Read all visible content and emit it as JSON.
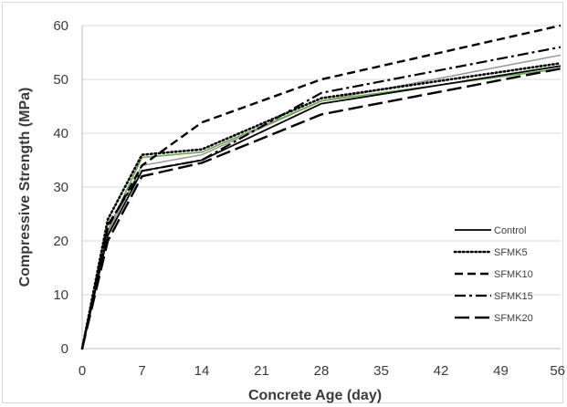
{
  "chart_data": {
    "type": "line",
    "title": "",
    "xlabel": "Concrete Age (day)",
    "ylabel": "Compressive Strength (MPa)",
    "xlim": [
      0,
      56
    ],
    "ylim": [
      0,
      60
    ],
    "xticks": [
      0,
      7,
      14,
      21,
      28,
      35,
      42,
      49,
      56
    ],
    "yticks": [
      0,
      10,
      20,
      30,
      40,
      50,
      60
    ],
    "x_tick_labels": [
      "0",
      "7",
      "14",
      "21",
      "28",
      "35",
      "42",
      "49",
      "56"
    ],
    "y_tick_labels": [
      "0",
      "10",
      "20",
      "30",
      "40",
      "50",
      "60"
    ],
    "grid": "horizontal",
    "legend_position": "right",
    "series": [
      {
        "name": "Control",
        "style": "solid",
        "color": "#000000",
        "x": [
          0,
          3,
          7,
          14,
          28,
          56
        ],
        "y": [
          0,
          21,
          33,
          35,
          45.5,
          52.5
        ]
      },
      {
        "name": "SFMK5",
        "style": "dotted",
        "color": "#000000",
        "x": [
          0,
          3,
          7,
          14,
          28,
          56
        ],
        "y": [
          0,
          24,
          36,
          37,
          46.5,
          53
        ]
      },
      {
        "name": "SFMK10",
        "style": "dashed",
        "color": "#000000",
        "x": [
          0,
          3,
          7,
          14,
          28,
          56
        ],
        "y": [
          0,
          22.5,
          34,
          42,
          50,
          60
        ]
      },
      {
        "name": "SFMK15",
        "style": "dashdot",
        "color": "#000000",
        "x": [
          0,
          3,
          7,
          14,
          28,
          56
        ],
        "y": [
          0,
          23,
          33,
          35,
          47.5,
          56
        ]
      },
      {
        "name": "SFMK20",
        "style": "longdash",
        "color": "#000000",
        "x": [
          0,
          3,
          7,
          14,
          28,
          56
        ],
        "y": [
          0,
          20,
          32,
          34.5,
          43.5,
          52
        ]
      }
    ],
    "extra_lines": [
      {
        "style": "solid",
        "color": "#9a9a9a",
        "x": [
          0,
          3,
          7,
          14,
          28,
          56
        ],
        "y": [
          0,
          21.5,
          34,
          36,
          46,
          54.5
        ]
      },
      {
        "style": "solid",
        "color": "#6aa84f",
        "x": [
          0,
          3,
          7,
          14,
          28,
          56
        ],
        "y": [
          0,
          22,
          35.5,
          36.5,
          46,
          52
        ]
      }
    ]
  }
}
